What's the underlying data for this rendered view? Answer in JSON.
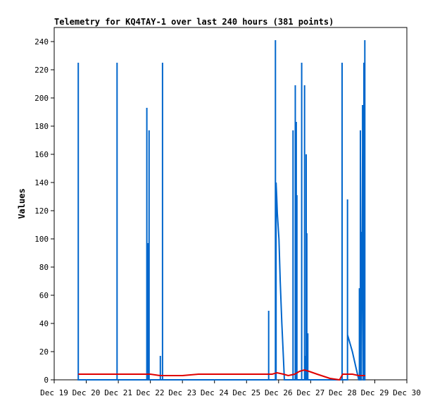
{
  "chart_data": {
    "type": "line",
    "title": "Telemetry for KQ4TAY-1 over last 240 hours (381 points)",
    "xlabel": "",
    "ylabel": "Values",
    "ylim": [
      0,
      250
    ],
    "xlim": [
      0,
      11
    ],
    "y_ticks": [
      0,
      20,
      40,
      60,
      80,
      100,
      120,
      140,
      160,
      180,
      200,
      220,
      240
    ],
    "x_ticks": [
      "Dec 19",
      "Dec 20",
      "Dec 21",
      "Dec 22",
      "Dec 23",
      "Dec 24",
      "Dec 25",
      "Dec 26",
      "Dec 27",
      "Dec 28",
      "Dec 29",
      "Dec 30"
    ],
    "grid": false,
    "series": [
      {
        "color": "#0066cc",
        "points": [
          [
            0.75,
            0
          ],
          [
            0.75,
            225
          ],
          [
            0.75,
            0
          ],
          [
            1.96,
            0
          ],
          [
            1.96,
            225
          ],
          [
            1.96,
            0
          ],
          [
            2.89,
            0
          ],
          [
            2.89,
            193
          ],
          [
            2.89,
            0
          ],
          [
            2.93,
            0
          ],
          [
            2.93,
            97
          ],
          [
            2.93,
            0
          ],
          [
            2.96,
            0
          ],
          [
            2.96,
            177
          ],
          [
            2.96,
            0
          ],
          [
            3.31,
            0
          ],
          [
            3.31,
            17
          ],
          [
            3.31,
            0
          ],
          [
            3.38,
            0
          ],
          [
            3.38,
            225
          ],
          [
            3.38,
            0
          ],
          [
            6.69,
            0
          ],
          [
            6.69,
            49
          ],
          [
            6.69,
            0
          ],
          [
            6.9,
            0
          ],
          [
            6.9,
            241
          ],
          [
            6.9,
            0
          ],
          [
            6.92,
            0
          ],
          [
            6.92,
            140
          ],
          [
            6.94,
            130
          ],
          [
            6.96,
            118
          ],
          [
            7.01,
            100
          ],
          [
            7.05,
            70
          ],
          [
            7.1,
            40
          ],
          [
            7.15,
            15
          ],
          [
            7.18,
            0
          ],
          [
            7.45,
            0
          ],
          [
            7.45,
            177
          ],
          [
            7.45,
            0
          ],
          [
            7.52,
            0
          ],
          [
            7.52,
            209
          ],
          [
            7.52,
            0
          ],
          [
            7.55,
            0
          ],
          [
            7.55,
            183
          ],
          [
            7.55,
            0
          ],
          [
            7.57,
            0
          ],
          [
            7.57,
            131
          ],
          [
            7.57,
            0
          ],
          [
            7.72,
            0
          ],
          [
            7.72,
            225
          ],
          [
            7.72,
            0
          ],
          [
            7.81,
            0
          ],
          [
            7.81,
            209
          ],
          [
            7.81,
            0
          ],
          [
            7.84,
            0
          ],
          [
            7.84,
            17
          ],
          [
            7.84,
            0
          ],
          [
            7.86,
            0
          ],
          [
            7.86,
            160
          ],
          [
            7.86,
            0
          ],
          [
            7.88,
            0
          ],
          [
            7.88,
            104
          ],
          [
            7.88,
            0
          ],
          [
            7.91,
            0
          ],
          [
            7.91,
            33
          ],
          [
            7.91,
            0
          ],
          [
            8.98,
            0
          ],
          [
            8.98,
            225
          ],
          [
            8.98,
            0
          ],
          [
            9.15,
            0
          ],
          [
            9.15,
            128
          ],
          [
            9.15,
            0
          ],
          [
            9.15,
            32
          ],
          [
            9.3,
            20
          ],
          [
            9.4,
            10
          ],
          [
            9.5,
            0
          ],
          [
            9.52,
            0
          ],
          [
            9.52,
            65
          ],
          [
            9.52,
            0
          ],
          [
            9.55,
            0
          ],
          [
            9.55,
            177
          ],
          [
            9.55,
            0
          ],
          [
            9.58,
            0
          ],
          [
            9.58,
            105
          ],
          [
            9.58,
            0
          ],
          [
            9.62,
            165
          ],
          [
            9.62,
            195
          ],
          [
            9.64,
            0
          ],
          [
            9.66,
            0
          ],
          [
            9.66,
            225
          ],
          [
            9.66,
            0
          ],
          [
            9.69,
            0
          ],
          [
            9.69,
            241
          ],
          [
            9.69,
            0
          ]
        ]
      },
      {
        "color": "#e00000",
        "points": [
          [
            0.75,
            4
          ],
          [
            1.5,
            4
          ],
          [
            2.5,
            4
          ],
          [
            3.0,
            4
          ],
          [
            3.3,
            3
          ],
          [
            3.5,
            3
          ],
          [
            3.8,
            3
          ],
          [
            4.0,
            3
          ],
          [
            4.5,
            4
          ],
          [
            5.0,
            4
          ],
          [
            5.5,
            4
          ],
          [
            6.0,
            4
          ],
          [
            6.5,
            4
          ],
          [
            6.8,
            4
          ],
          [
            6.95,
            5
          ],
          [
            7.15,
            4
          ],
          [
            7.3,
            3
          ],
          [
            7.5,
            4
          ],
          [
            7.65,
            6
          ],
          [
            7.8,
            7
          ],
          [
            7.95,
            6
          ],
          [
            8.2,
            4
          ],
          [
            8.6,
            1
          ],
          [
            8.9,
            0
          ],
          [
            9.0,
            4
          ],
          [
            9.3,
            4
          ],
          [
            9.5,
            3
          ],
          [
            9.6,
            3
          ],
          [
            9.7,
            3
          ]
        ]
      }
    ]
  }
}
